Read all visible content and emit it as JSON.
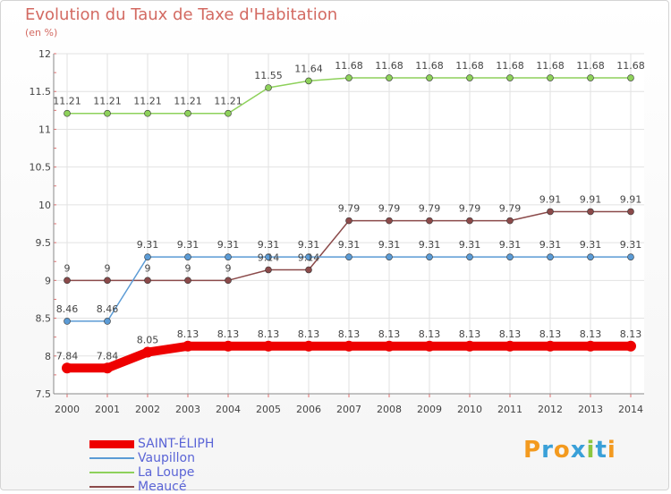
{
  "title": "Evolution du Taux de Taxe d'Habitation",
  "subtitle": "(en %)",
  "logo": {
    "text": "Proxiti",
    "letters": [
      "P",
      "r",
      "o",
      "x",
      "i",
      "t",
      "i"
    ],
    "colors": [
      "#f39a1f",
      "#3aa0d8",
      "#f39a1f",
      "#3aa0d8",
      "#8cc63f",
      "#3aa0d8",
      "#f39a1f"
    ]
  },
  "chart_data": {
    "type": "line",
    "title": "Evolution du Taux de Taxe d'Habitation",
    "ylabel": "(en %)",
    "xlabel": "",
    "x": [
      "2000",
      "2001",
      "2002",
      "2003",
      "2004",
      "2005",
      "2006",
      "2007",
      "2008",
      "2009",
      "2010",
      "2011",
      "2012",
      "2013",
      "2014"
    ],
    "ylim": [
      7.5,
      12
    ],
    "yticks": [
      7.5,
      8,
      8.5,
      9,
      9.5,
      10,
      10.5,
      11,
      11.5,
      12
    ],
    "ytick_labels": [
      "7.5",
      "8",
      "8.5",
      "9",
      "9.5",
      "10",
      "10.5",
      "11",
      "11.5",
      "12"
    ],
    "grid": true,
    "legend_position": "bottom-left",
    "series": [
      {
        "name": "SAINT-ÉLIPH",
        "color": "#ee0000",
        "values": [
          7.84,
          7.84,
          8.05,
          8.13,
          8.13,
          8.13,
          8.13,
          8.13,
          8.13,
          8.13,
          8.13,
          8.13,
          8.13,
          8.13,
          8.13
        ],
        "labels": [
          "7.84",
          "7.84",
          "8.05",
          "8.13",
          "8.13",
          "8.13",
          "8.13",
          "8.13",
          "8.13",
          "8.13",
          "8.13",
          "8.13",
          "8.13",
          "8.13",
          "8.13"
        ]
      },
      {
        "name": "Vaupillon",
        "color": "#5b9bd5",
        "values": [
          8.46,
          8.46,
          9.31,
          9.31,
          9.31,
          9.31,
          9.31,
          9.31,
          9.31,
          9.31,
          9.31,
          9.31,
          9.31,
          9.31,
          9.31
        ],
        "labels": [
          "8.46",
          "8.46",
          "9.31",
          "9.31",
          "9.31",
          "9.31",
          "9.31",
          "9.31",
          "9.31",
          "9.31",
          "9.31",
          "9.31",
          "9.31",
          "9.31",
          "9.31"
        ]
      },
      {
        "name": "La Loupe",
        "color": "#8ed15b",
        "values": [
          11.21,
          11.21,
          11.21,
          11.21,
          11.21,
          11.55,
          11.64,
          11.68,
          11.68,
          11.68,
          11.68,
          11.68,
          11.68,
          11.68,
          11.68
        ],
        "labels": [
          "11.21",
          "11.21",
          "11.21",
          "11.21",
          "11.21",
          "11.55",
          "11.64",
          "11.68",
          "11.68",
          "11.68",
          "11.68",
          "11.68",
          "11.68",
          "11.68",
          "11.68"
        ]
      },
      {
        "name": "Meaucé",
        "color": "#8b4a4a",
        "values": [
          9,
          9,
          9,
          9,
          9,
          9.14,
          9.14,
          9.79,
          9.79,
          9.79,
          9.79,
          9.79,
          9.91,
          9.91,
          9.91
        ],
        "labels": [
          "9",
          "9",
          "9",
          "9",
          "9",
          "9.14",
          "9.14",
          "9.79",
          "9.79",
          "9.79",
          "9.79",
          "9.79",
          "9.91",
          "9.91",
          "9.91"
        ]
      }
    ]
  }
}
